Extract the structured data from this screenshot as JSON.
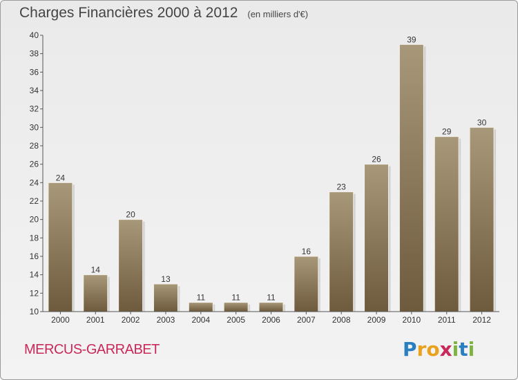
{
  "header": {
    "title": "Charges Financières 2000 à 2012",
    "subtitle": "(en milliers d'€)"
  },
  "footer": {
    "commune": "MERCUS-GARRABET",
    "logo_letters": [
      "P",
      "r",
      "o",
      "x",
      "i",
      "t",
      "i"
    ],
    "logo_colors": [
      "#2a7fc3",
      "#e8a21e",
      "#e8a21e",
      "#c8285a",
      "#7cb342",
      "#2a7fc3",
      "#7cb342"
    ]
  },
  "chart_data": {
    "type": "bar",
    "categories": [
      "2000",
      "2001",
      "2002",
      "2003",
      "2004",
      "2005",
      "2006",
      "2007",
      "2008",
      "2009",
      "2010",
      "2011",
      "2012"
    ],
    "values": [
      24,
      14,
      20,
      13,
      11,
      11,
      11,
      16,
      23,
      26,
      39,
      29,
      30
    ],
    "ylim": [
      10,
      40
    ],
    "yticks": [
      10,
      12,
      14,
      16,
      18,
      20,
      22,
      24,
      26,
      28,
      30,
      32,
      34,
      36,
      38,
      40
    ],
    "title": "Charges Financières 2000 à 2012",
    "subtitle": "(en milliers d'€)",
    "grid": false,
    "colors": {
      "bar_top": "#a8987a",
      "bar_bottom": "#6e5a3c",
      "axis": "#555555"
    }
  }
}
